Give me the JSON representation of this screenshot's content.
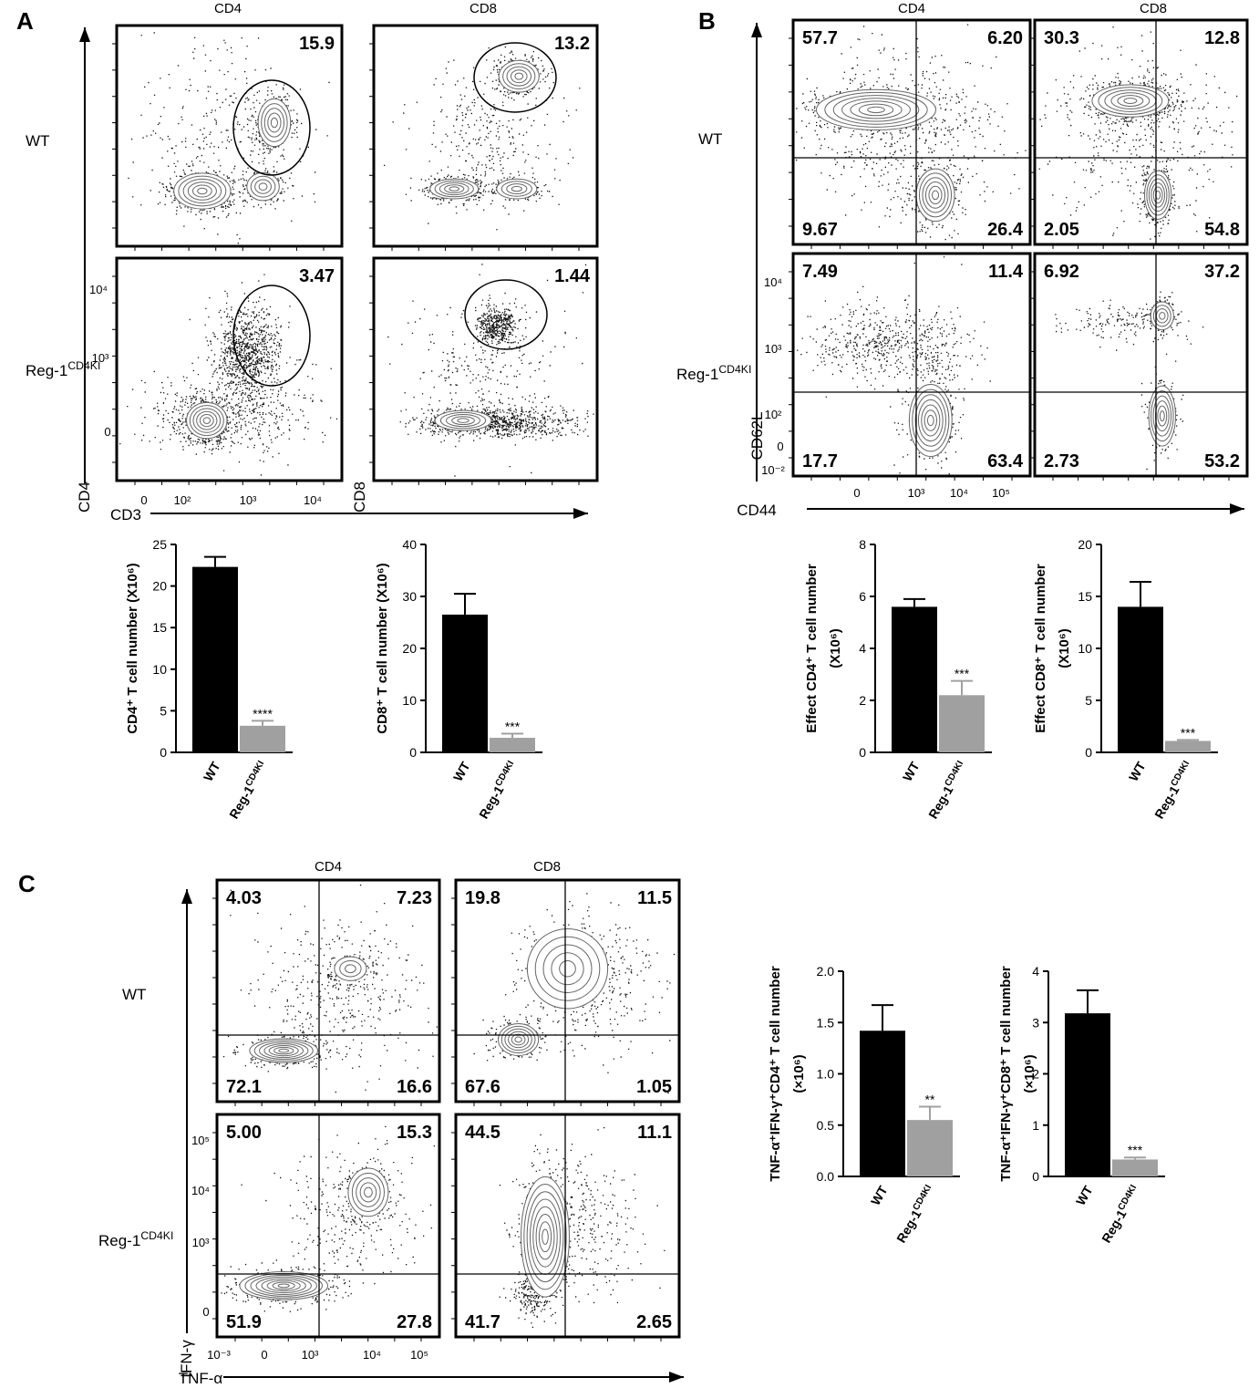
{
  "flow_panels": [
    {
      "letter": "A",
      "columns": [
        "CD4",
        "CD8"
      ],
      "rows": [
        [
          "WT"
        ],
        [
          "Reg-1",
          "CD4KI"
        ]
      ],
      "y_axis_labels": [
        "CD4",
        "CD8"
      ],
      "x_axis_label": "CD3",
      "x_tick_labels": [
        "0",
        "10²",
        "10³",
        "10⁴"
      ],
      "y_tick_labels": [
        "10⁴",
        "10³",
        "0"
      ],
      "plots": [
        {
          "gate": "15.9"
        },
        {
          "gate": "13.2"
        },
        {
          "gate": "3.47"
        },
        {
          "gate": "1.44"
        }
      ]
    },
    {
      "letter": "B",
      "columns": [
        "CD4",
        "CD8"
      ],
      "rows": [
        [
          "WT"
        ],
        [
          "Reg-1",
          "CD4KI"
        ]
      ],
      "y_axis_labels": [
        "CD62L"
      ],
      "x_axis_label": "CD44",
      "x_tick_labels": [
        "0",
        "10³",
        "10⁴",
        "10⁵"
      ],
      "y_tick_labels": [
        "10⁴",
        "10³",
        "10²",
        "0",
        "10⁻²"
      ],
      "plots": [
        {
          "quadrants": [
            "57.7",
            "6.20",
            "9.67",
            "26.4"
          ]
        },
        {
          "quadrants": [
            "30.3",
            "12.8",
            "2.05",
            "54.8"
          ]
        },
        {
          "quadrants": [
            "7.49",
            "11.4",
            "17.7",
            "63.4"
          ]
        },
        {
          "quadrants": [
            "6.92",
            "37.2",
            "2.73",
            "53.2"
          ]
        }
      ]
    },
    {
      "letter": "C",
      "columns": [
        "CD4",
        "CD8"
      ],
      "rows": [
        [
          "WT"
        ],
        [
          "Reg-1",
          "CD4KI"
        ]
      ],
      "y_axis_labels": [
        "IFN-γ"
      ],
      "x_axis_label": "TNF-α",
      "x_tick_labels": [
        "10⁻³",
        "0",
        "10³",
        "10⁴",
        "10⁵"
      ],
      "y_tick_labels": [
        "10⁵",
        "10⁴",
        "10³",
        "0"
      ],
      "plots": [
        {
          "quadrants": [
            "4.03",
            "7.23",
            "72.1",
            "16.6"
          ]
        },
        {
          "quadrants": [
            "19.8",
            "11.5",
            "67.6",
            "1.05"
          ]
        },
        {
          "quadrants": [
            "5.00",
            "15.3",
            "51.9",
            "27.8"
          ]
        },
        {
          "quadrants": [
            "44.5",
            "11.1",
            "41.7",
            "2.65"
          ]
        }
      ]
    }
  ],
  "chart_data": [
    {
      "type": "bar",
      "ylabel": [
        "CD4⁺ T cell number (X10⁶)"
      ],
      "categories": [
        [
          "WT"
        ],
        [
          "Reg-1",
          "CD4KI"
        ]
      ],
      "values": [
        22.3,
        3.2
      ],
      "errors": [
        1.2,
        0.6
      ],
      "colors": [
        "#000000",
        "#a0a0a0"
      ],
      "significance": "****",
      "ylim": [
        0,
        25
      ],
      "yticks": [
        0,
        5,
        10,
        15,
        20,
        25
      ]
    },
    {
      "type": "bar",
      "ylabel": [
        "CD8⁺ T cell number (X10⁶)"
      ],
      "categories": [
        [
          "WT"
        ],
        [
          "Reg-1",
          "CD4KI"
        ]
      ],
      "values": [
        26.5,
        2.8
      ],
      "errors": [
        4.0,
        0.8
      ],
      "colors": [
        "#000000",
        "#a0a0a0"
      ],
      "significance": "***",
      "ylim": [
        0,
        40
      ],
      "yticks": [
        0,
        10,
        20,
        30,
        40
      ]
    },
    {
      "type": "bar",
      "ylabel": [
        "Effect CD4⁺ T cell number",
        "(X10⁶)"
      ],
      "categories": [
        [
          "WT"
        ],
        [
          "Reg-1",
          "CD4KI"
        ]
      ],
      "values": [
        5.6,
        2.2
      ],
      "errors": [
        0.3,
        0.55
      ],
      "colors": [
        "#000000",
        "#a0a0a0"
      ],
      "significance": "***",
      "ylim": [
        0,
        8
      ],
      "yticks": [
        0,
        2,
        4,
        6,
        8
      ]
    },
    {
      "type": "bar",
      "ylabel": [
        "Effect CD8⁺ T cell number",
        "(X10⁶)"
      ],
      "categories": [
        [
          "WT"
        ],
        [
          "Reg-1",
          "CD4KI"
        ]
      ],
      "values": [
        14.0,
        1.1
      ],
      "errors": [
        2.4,
        0.1
      ],
      "colors": [
        "#000000",
        "#a0a0a0"
      ],
      "significance": "***",
      "ylim": [
        0,
        20
      ],
      "yticks": [
        0,
        5,
        10,
        15,
        20
      ]
    },
    {
      "type": "bar",
      "ylabel": [
        "TNF-α⁺IFN-γ⁺CD4⁺ T cell number",
        "(×10⁶)"
      ],
      "categories": [
        [
          "WT"
        ],
        [
          "Reg-1",
          "CD4KI"
        ]
      ],
      "values": [
        1.42,
        0.55
      ],
      "errors": [
        0.25,
        0.13
      ],
      "colors": [
        "#000000",
        "#a0a0a0"
      ],
      "significance": "**",
      "ylim": [
        0,
        2
      ],
      "yticks": [
        {
          "value": 0,
          "label": "0.0"
        },
        0.5,
        {
          "value": 1,
          "label": "1.0"
        },
        1.5,
        {
          "value": 2,
          "label": "2.0"
        }
      ]
    },
    {
      "type": "bar",
      "ylabel": [
        "TNF-α⁺IFN-γ⁺CD8⁺ T cell number",
        "(×10⁶)"
      ],
      "categories": [
        [
          "WT"
        ],
        [
          "Reg-1",
          "CD4KI"
        ]
      ],
      "values": [
        3.18,
        0.33
      ],
      "errors": [
        0.45,
        0.04
      ],
      "colors": [
        "#000000",
        "#a0a0a0"
      ],
      "significance": "***",
      "ylim": [
        0,
        4
      ],
      "yticks": [
        0,
        1,
        2,
        3,
        4
      ]
    }
  ]
}
